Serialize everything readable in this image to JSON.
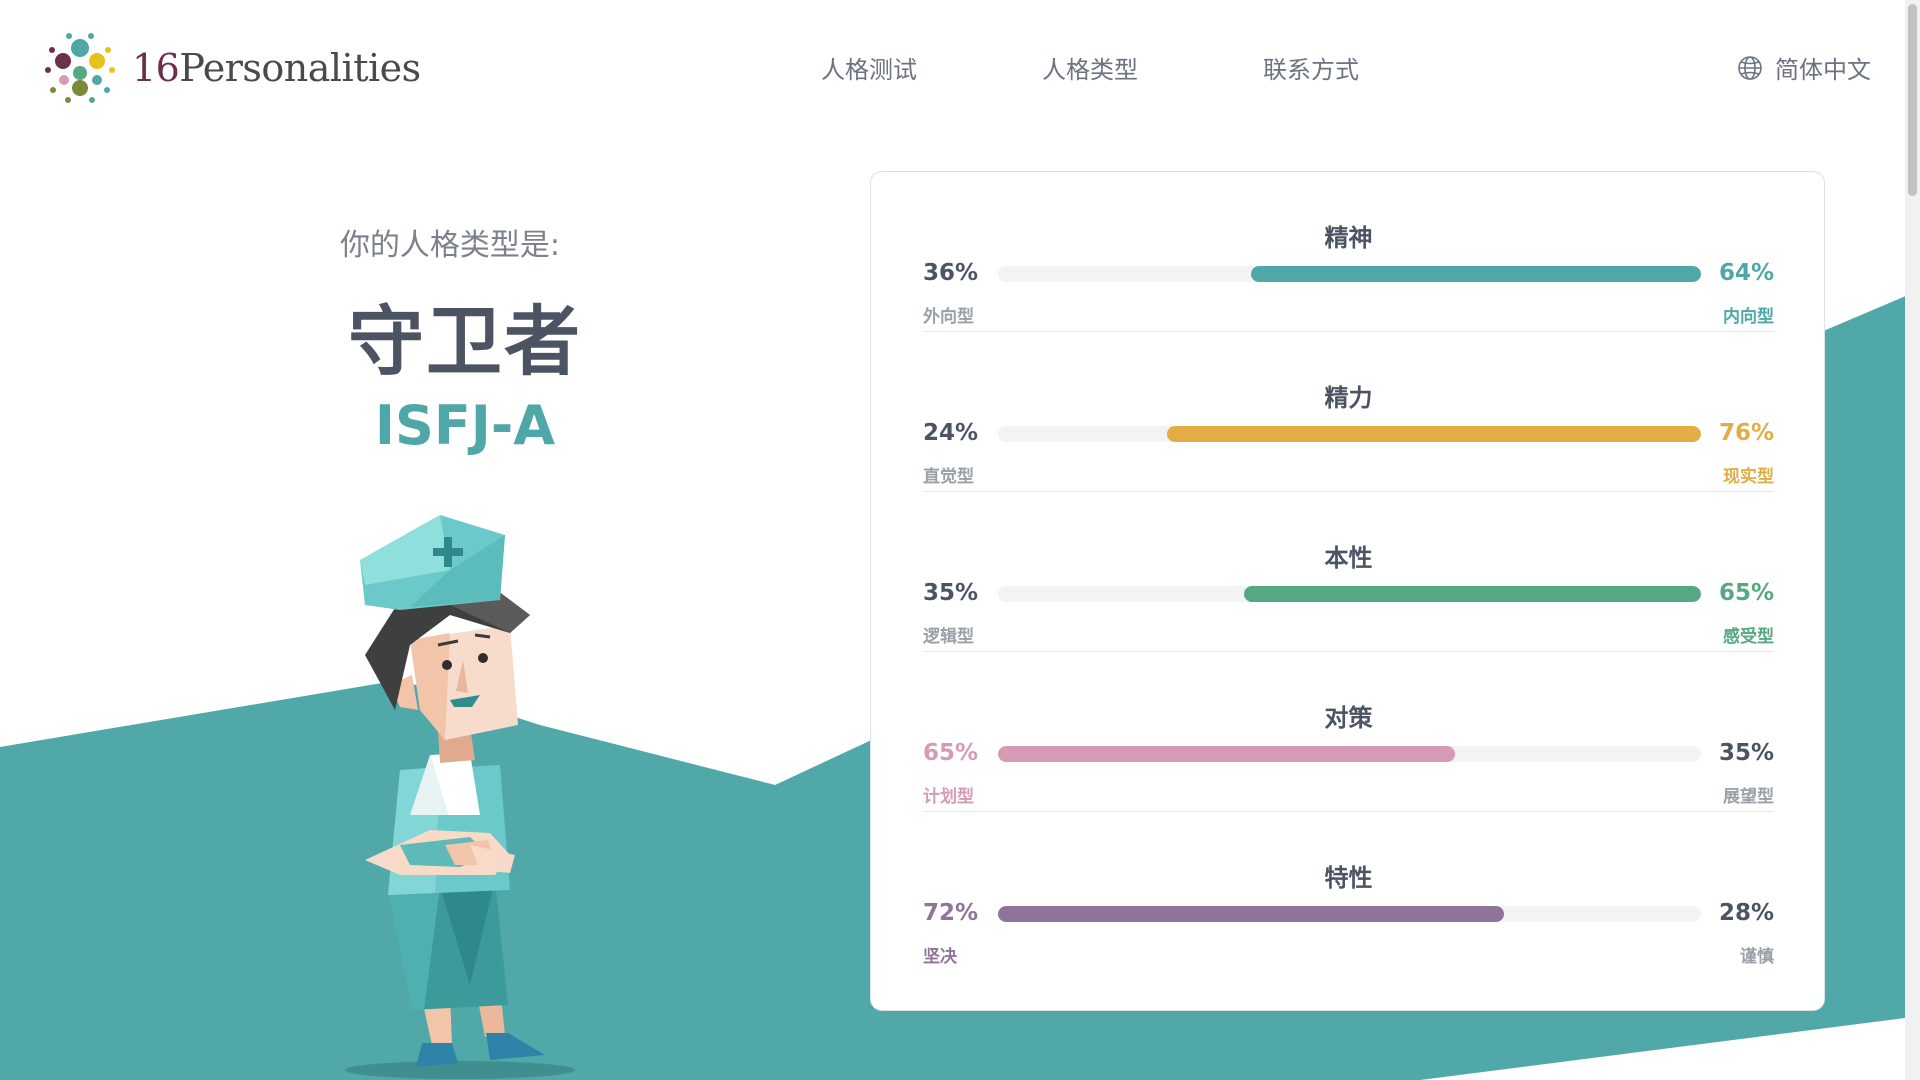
{
  "header": {
    "logo_number": "16",
    "logo_text": "Personalities",
    "nav": [
      "人格测试",
      "人格类型",
      "联系方式"
    ],
    "language": "简体中文"
  },
  "result": {
    "intro": "你的人格类型是:",
    "type_name": "守卫者",
    "type_code": "ISFJ-A"
  },
  "traits": [
    {
      "title": "精神",
      "left_pct": "36%",
      "left_label": "外向型",
      "right_pct": "64%",
      "right_label": "内向型",
      "dominant": "right",
      "value": 64,
      "color": "#4fa7a8"
    },
    {
      "title": "精力",
      "left_pct": "24%",
      "left_label": "直觉型",
      "right_pct": "76%",
      "right_label": "现实型",
      "dominant": "right",
      "value": 76,
      "color": "#e3ac45"
    },
    {
      "title": "本性",
      "left_pct": "35%",
      "left_label": "逻辑型",
      "right_pct": "65%",
      "right_label": "感受型",
      "dominant": "right",
      "value": 65,
      "color": "#56a883"
    },
    {
      "title": "对策",
      "left_pct": "65%",
      "left_label": "计划型",
      "right_pct": "35%",
      "right_label": "展望型",
      "dominant": "left",
      "value": 65,
      "color": "#d59bb4"
    },
    {
      "title": "特性",
      "left_pct": "72%",
      "left_label": "坚决",
      "right_pct": "28%",
      "right_label": "谨慎",
      "dominant": "left",
      "value": 72,
      "color": "#8f7499"
    }
  ],
  "colors": {
    "accent_teal": "#4fa7a8",
    "background_band": "#51a8a9",
    "text_dark": "#4c5463"
  }
}
